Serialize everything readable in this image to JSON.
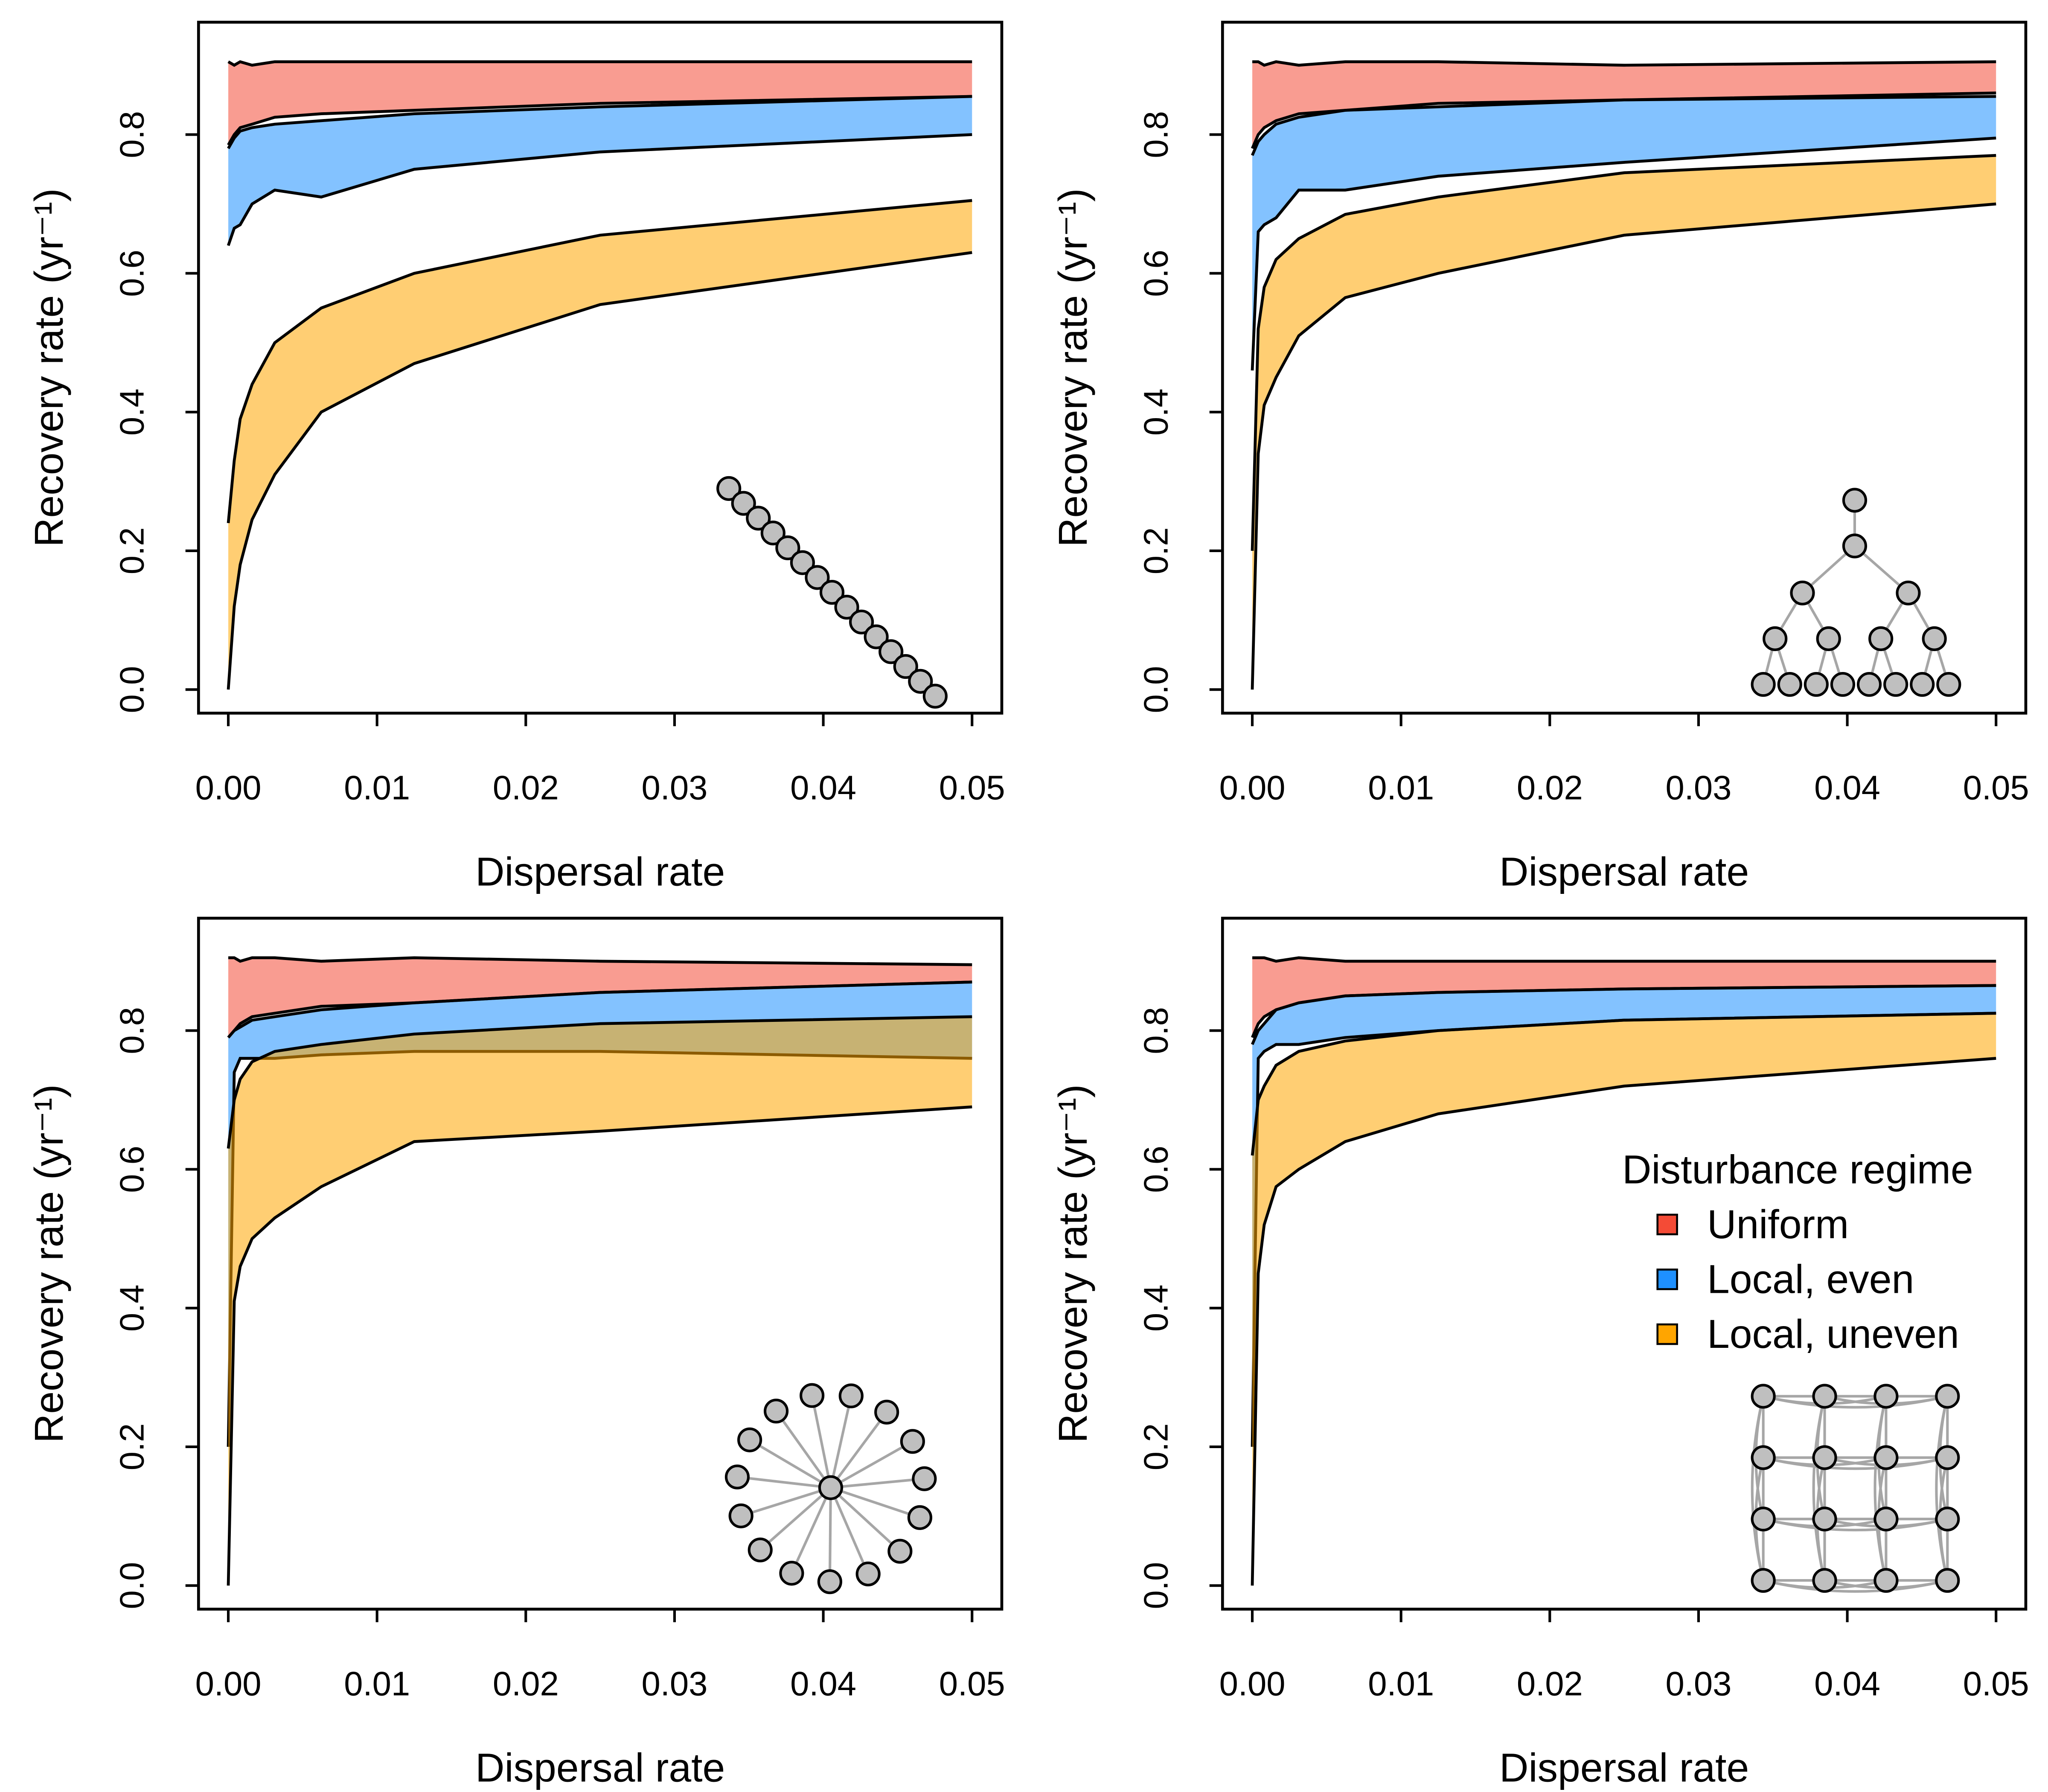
{
  "chart_data": [
    {
      "type": "band",
      "xlabel": "Dispersal rate",
      "ylabel": "Recovery rate (yr⁻¹)",
      "x": [
        0,
        0.0004,
        0.0008,
        0.0016,
        0.003125,
        0.00625,
        0.0125,
        0.025,
        0.05
      ],
      "xlim": [
        -0.002,
        0.052
      ],
      "ylim": [
        -0.034,
        0.962
      ],
      "xticks": [
        {
          "value": 0,
          "label": "0.00"
        },
        {
          "value": 0.01,
          "label": "0.01"
        },
        {
          "value": 0.02,
          "label": "0.02"
        },
        {
          "value": 0.03,
          "label": "0.03"
        },
        {
          "value": 0.04,
          "label": "0.04"
        },
        {
          "value": 0.05,
          "label": "0.05"
        }
      ],
      "yticks": [
        {
          "value": 0,
          "label": "0.0"
        },
        {
          "value": 0.2,
          "label": "0.2"
        },
        {
          "value": 0.4,
          "label": "0.4"
        },
        {
          "value": 0.6,
          "label": "0.6"
        },
        {
          "value": 0.8,
          "label": "0.8"
        }
      ],
      "network": "chain",
      "series": [
        {
          "color": "#f44b36",
          "upper": [
            0.905,
            0.9,
            0.905,
            0.9,
            0.905,
            0.905,
            0.905,
            0.905,
            0.905
          ],
          "lower": [
            0.785,
            0.8,
            0.81,
            0.815,
            0.825,
            0.83,
            0.835,
            0.845,
            0.855
          ]
        },
        {
          "color": "#1e90ff",
          "upper": [
            0.78,
            0.795,
            0.805,
            0.81,
            0.815,
            0.82,
            0.83,
            0.84,
            0.855
          ],
          "lower": [
            0.64,
            0.665,
            0.67,
            0.7,
            0.72,
            0.71,
            0.75,
            0.775,
            0.8
          ]
        },
        {
          "color": "#ffa500",
          "upper": [
            0.24,
            0.33,
            0.39,
            0.44,
            0.5,
            0.55,
            0.6,
            0.655,
            0.705
          ],
          "lower": [
            0,
            0.12,
            0.18,
            0.245,
            0.31,
            0.4,
            0.47,
            0.555,
            0.63
          ]
        }
      ]
    },
    {
      "type": "band",
      "xlabel": "Dispersal rate",
      "ylabel": "Recovery rate (yr⁻¹)",
      "x": [
        0,
        0.0004,
        0.0008,
        0.0016,
        0.003125,
        0.00625,
        0.0125,
        0.025,
        0.05
      ],
      "xlim": [
        -0.002,
        0.052
      ],
      "ylim": [
        -0.034,
        0.962
      ],
      "xticks": [
        {
          "value": 0,
          "label": "0.00"
        },
        {
          "value": 0.01,
          "label": "0.01"
        },
        {
          "value": 0.02,
          "label": "0.02"
        },
        {
          "value": 0.03,
          "label": "0.03"
        },
        {
          "value": 0.04,
          "label": "0.04"
        },
        {
          "value": 0.05,
          "label": "0.05"
        }
      ],
      "yticks": [
        {
          "value": 0,
          "label": "0.0"
        },
        {
          "value": 0.2,
          "label": "0.2"
        },
        {
          "value": 0.4,
          "label": "0.4"
        },
        {
          "value": 0.6,
          "label": "0.6"
        },
        {
          "value": 0.8,
          "label": "0.8"
        }
      ],
      "network": "tree",
      "series": [
        {
          "color": "#f44b36",
          "upper": [
            0.905,
            0.905,
            0.9,
            0.905,
            0.9,
            0.905,
            0.905,
            0.9,
            0.905
          ],
          "lower": [
            0.78,
            0.8,
            0.81,
            0.82,
            0.83,
            0.835,
            0.845,
            0.85,
            0.86
          ]
        },
        {
          "color": "#1e90ff",
          "upper": [
            0.77,
            0.79,
            0.8,
            0.815,
            0.825,
            0.835,
            0.84,
            0.85,
            0.855
          ],
          "lower": [
            0.46,
            0.66,
            0.67,
            0.68,
            0.72,
            0.72,
            0.74,
            0.76,
            0.795
          ]
        },
        {
          "color": "#ffa500",
          "upper": [
            0.2,
            0.52,
            0.58,
            0.62,
            0.65,
            0.685,
            0.71,
            0.745,
            0.77
          ],
          "lower": [
            0,
            0.34,
            0.41,
            0.45,
            0.51,
            0.565,
            0.6,
            0.655,
            0.7
          ]
        }
      ]
    },
    {
      "type": "band",
      "xlabel": "Dispersal rate",
      "ylabel": "Recovery rate (yr⁻¹)",
      "x": [
        0,
        0.0004,
        0.0008,
        0.0016,
        0.003125,
        0.00625,
        0.0125,
        0.025,
        0.05
      ],
      "xlim": [
        -0.002,
        0.052
      ],
      "ylim": [
        -0.034,
        0.962
      ],
      "xticks": [
        {
          "value": 0,
          "label": "0.00"
        },
        {
          "value": 0.01,
          "label": "0.01"
        },
        {
          "value": 0.02,
          "label": "0.02"
        },
        {
          "value": 0.03,
          "label": "0.03"
        },
        {
          "value": 0.04,
          "label": "0.04"
        },
        {
          "value": 0.05,
          "label": "0.05"
        }
      ],
      "yticks": [
        {
          "value": 0,
          "label": "0.0"
        },
        {
          "value": 0.2,
          "label": "0.2"
        },
        {
          "value": 0.4,
          "label": "0.4"
        },
        {
          "value": 0.6,
          "label": "0.6"
        },
        {
          "value": 0.8,
          "label": "0.8"
        }
      ],
      "network": "star",
      "series": [
        {
          "color": "#f44b36",
          "upper": [
            0.905,
            0.905,
            0.9,
            0.905,
            0.905,
            0.9,
            0.905,
            0.9,
            0.895
          ],
          "lower": [
            0.79,
            0.8,
            0.81,
            0.82,
            0.825,
            0.835,
            0.84,
            0.855,
            0.87
          ]
        },
        {
          "color": "#1e90ff",
          "upper": [
            0.79,
            0.8,
            0.805,
            0.815,
            0.82,
            0.83,
            0.84,
            0.855,
            0.87
          ],
          "lower": [
            0.2,
            0.74,
            0.76,
            0.76,
            0.76,
            0.765,
            0.77,
            0.77,
            0.76
          ]
        },
        {
          "color": "#ffa500",
          "upper": [
            0.63,
            0.7,
            0.73,
            0.755,
            0.77,
            0.78,
            0.795,
            0.81,
            0.82
          ],
          "lower": [
            0,
            0.41,
            0.46,
            0.5,
            0.53,
            0.575,
            0.64,
            0.655,
            0.69
          ]
        }
      ]
    },
    {
      "type": "band",
      "xlabel": "Dispersal rate",
      "ylabel": "Recovery rate (yr⁻¹)",
      "x": [
        0,
        0.0004,
        0.0008,
        0.0016,
        0.003125,
        0.00625,
        0.0125,
        0.025,
        0.05
      ],
      "xlim": [
        -0.002,
        0.052
      ],
      "ylim": [
        -0.034,
        0.962
      ],
      "xticks": [
        {
          "value": 0,
          "label": "0.00"
        },
        {
          "value": 0.01,
          "label": "0.01"
        },
        {
          "value": 0.02,
          "label": "0.02"
        },
        {
          "value": 0.03,
          "label": "0.03"
        },
        {
          "value": 0.04,
          "label": "0.04"
        },
        {
          "value": 0.05,
          "label": "0.05"
        }
      ],
      "yticks": [
        {
          "value": 0,
          "label": "0.0"
        },
        {
          "value": 0.2,
          "label": "0.2"
        },
        {
          "value": 0.4,
          "label": "0.4"
        },
        {
          "value": 0.6,
          "label": "0.6"
        },
        {
          "value": 0.8,
          "label": "0.8"
        }
      ],
      "network": "lattice",
      "legend_title": "Disturbance regime",
      "series": [
        {
          "name": "Uniform",
          "color": "#f44b36",
          "upper": [
            0.905,
            0.905,
            0.905,
            0.9,
            0.905,
            0.9,
            0.9,
            0.9,
            0.9
          ],
          "lower": [
            0.79,
            0.81,
            0.82,
            0.83,
            0.84,
            0.85,
            0.855,
            0.86,
            0.865
          ]
        },
        {
          "name": "Local, even",
          "color": "#1e90ff",
          "upper": [
            0.78,
            0.8,
            0.81,
            0.83,
            0.84,
            0.85,
            0.855,
            0.86,
            0.865
          ],
          "lower": [
            0.2,
            0.76,
            0.77,
            0.78,
            0.78,
            0.79,
            0.8,
            0.815,
            0.825
          ]
        },
        {
          "name": "Local, uneven",
          "color": "#ffa500",
          "upper": [
            0.62,
            0.7,
            0.72,
            0.75,
            0.77,
            0.785,
            0.8,
            0.815,
            0.825
          ],
          "lower": [
            0,
            0.45,
            0.52,
            0.575,
            0.6,
            0.64,
            0.68,
            0.72,
            0.76
          ]
        }
      ]
    }
  ]
}
